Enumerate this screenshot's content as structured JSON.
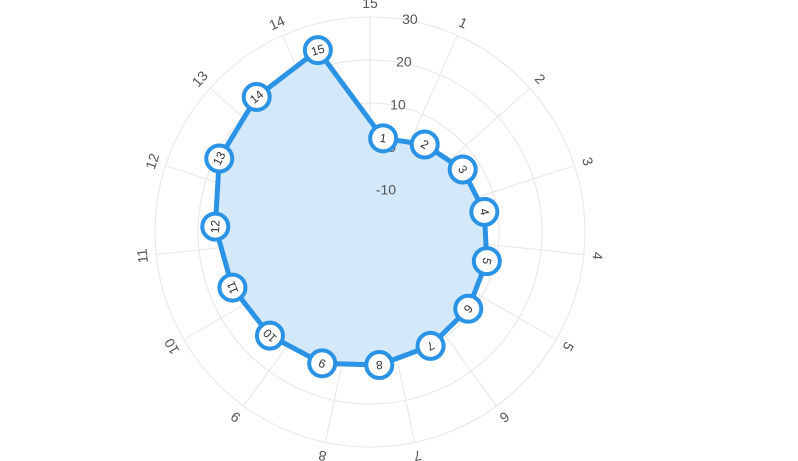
{
  "chart_data": {
    "type": "radar",
    "title": "",
    "categories": [
      "1",
      "2",
      "3",
      "4",
      "5",
      "6",
      "7",
      "8",
      "9",
      "10",
      "11",
      "12",
      "13",
      "14",
      "15"
    ],
    "series": [
      {
        "values": [
          2.0,
          4.0,
          6.0,
          7.0,
          8.0,
          9.0,
          10.0,
          11.0,
          12.5,
          13.5,
          14.5,
          16.0,
          19.0,
          21.0,
          24.0
        ],
        "point_labels": [
          "1",
          "2",
          "3",
          "4",
          "5",
          "6",
          "7",
          "8",
          "9",
          "10",
          "11",
          "12",
          "13",
          "14",
          "15"
        ],
        "color": "#2a93e6",
        "fill_color": "#d3e8fb"
      }
    ],
    "radial_axis": {
      "min": -20,
      "max": 30,
      "ticks": [
        -10,
        0,
        10,
        20,
        30
      ],
      "tick_labels": [
        "-10",
        "0",
        "10",
        "20",
        "30"
      ]
    },
    "angle_axis": {
      "start_angle_deg": 8,
      "direction": "clockwise",
      "labels": [
        "15",
        "1",
        "2",
        "3",
        "4",
        "5",
        "6",
        "7",
        "8",
        "9",
        "10",
        "11",
        "12",
        "13",
        "14"
      ]
    },
    "grid": true,
    "legend": "none"
  }
}
